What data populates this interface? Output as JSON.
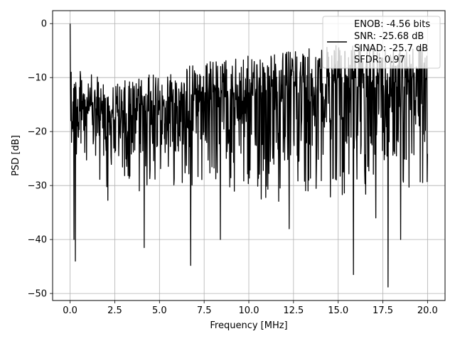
{
  "chart_data": {
    "type": "line",
    "title": "",
    "xlabel": "Frequency [MHz]",
    "ylabel": "PSD [dB]",
    "xlim": [
      -0.98,
      20.98
    ],
    "ylim": [
      -51.3,
      2.4
    ],
    "x_ticks": [
      0.0,
      2.5,
      5.0,
      7.5,
      10.0,
      12.5,
      15.0,
      17.5,
      20.0
    ],
    "x_tick_labels": [
      "0.0",
      "2.5",
      "5.0",
      "7.5",
      "10.0",
      "12.5",
      "15.0",
      "17.5",
      "20.0"
    ],
    "y_ticks": [
      0,
      -10,
      -20,
      -30,
      -40,
      -50
    ],
    "y_tick_labels": [
      "0",
      "−10",
      "−20",
      "−30",
      "−40",
      "−50"
    ],
    "grid": true,
    "legend_position": "top-right",
    "series": [
      {
        "name": "",
        "color": "#000000",
        "legend_text": [
          "ENOB: -4.56 bits",
          "SNR: -25.68 dB",
          "SINAD: -25.7 dB",
          "SFDR: 0.97"
        ],
        "x_start": 0.0,
        "x_end": 20.0,
        "points": 1024,
        "peak_db": 0.0,
        "envelope_upper_db": [
          -8,
          -11,
          -9,
          -7,
          -6,
          -5,
          -4,
          -4,
          -3.5
        ],
        "envelope_lower_db": [
          -28,
          -34,
          -30,
          -30,
          -33,
          -33,
          -32,
          -33,
          -30
        ],
        "deep_notches": [
          {
            "x": 0.3,
            "y": -44
          },
          {
            "x": 0.22,
            "y": -40
          },
          {
            "x": 4.15,
            "y": -41.5
          },
          {
            "x": 6.75,
            "y": -44.8
          },
          {
            "x": 8.4,
            "y": -40
          },
          {
            "x": 15.85,
            "y": -46.5
          },
          {
            "x": 17.8,
            "y": -48.8
          },
          {
            "x": 17.1,
            "y": -36
          },
          {
            "x": 18.5,
            "y": -40
          },
          {
            "x": 12.25,
            "y": -38
          }
        ]
      }
    ]
  }
}
